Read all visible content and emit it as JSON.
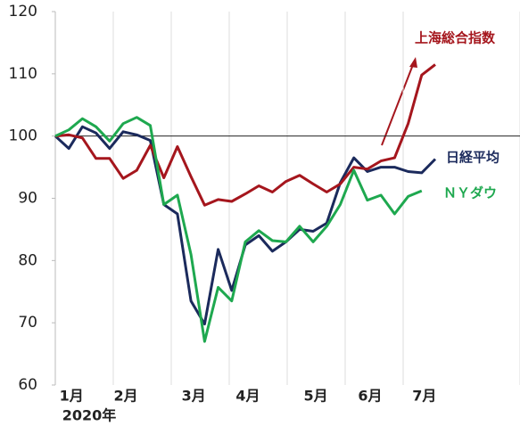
{
  "chart_data": {
    "type": "line",
    "categories": [
      null,
      "1月",
      null,
      null,
      null,
      "2月",
      null,
      null,
      null,
      null,
      "3月",
      null,
      null,
      null,
      "4月",
      null,
      null,
      null,
      null,
      "5月",
      null,
      null,
      null,
      "6月",
      null,
      null,
      null,
      "7月",
      null
    ],
    "x_label": "2020年",
    "series": [
      {
        "name": "日経平均",
        "color": "#1b2a5c",
        "values": [
          100,
          98,
          101.5,
          100.5,
          98,
          100.7,
          100.2,
          99.3,
          89,
          87.5,
          73.5,
          69.8,
          81.8,
          75.2,
          82.5,
          84,
          81.5,
          83,
          85,
          84.7,
          86,
          92.5,
          96.5,
          94.3,
          95,
          95,
          94.3,
          94.1,
          96.3
        ]
      },
      {
        "name": "上海総合指数",
        "color": "#a5161d",
        "values": [
          100,
          100.2,
          99.7,
          96.4,
          96.4,
          93.2,
          94.5,
          98.5,
          93.3,
          98.3,
          93.5,
          88.9,
          89.8,
          89.5,
          90.7,
          92,
          91,
          92.7,
          93.7,
          92.3,
          91,
          92.3,
          95,
          94.7,
          96,
          96.5,
          102,
          109.8,
          111.5
        ]
      },
      {
        "name": "ＮＹダウ",
        "color": "#1ea84f",
        "values": [
          100,
          101,
          102.8,
          101.5,
          99.2,
          102,
          103,
          101.7,
          89,
          90.5,
          81,
          67,
          75.7,
          73.5,
          83,
          84.8,
          83.2,
          83,
          85.5,
          83,
          85.5,
          89,
          94.5,
          89.7,
          90.5,
          87.5,
          90.3,
          91.2,
          null
        ]
      }
    ],
    "baseline": 100,
    "ylim": [
      60,
      120
    ],
    "yticks": [
      60,
      70,
      80,
      90,
      100,
      110,
      120
    ]
  }
}
